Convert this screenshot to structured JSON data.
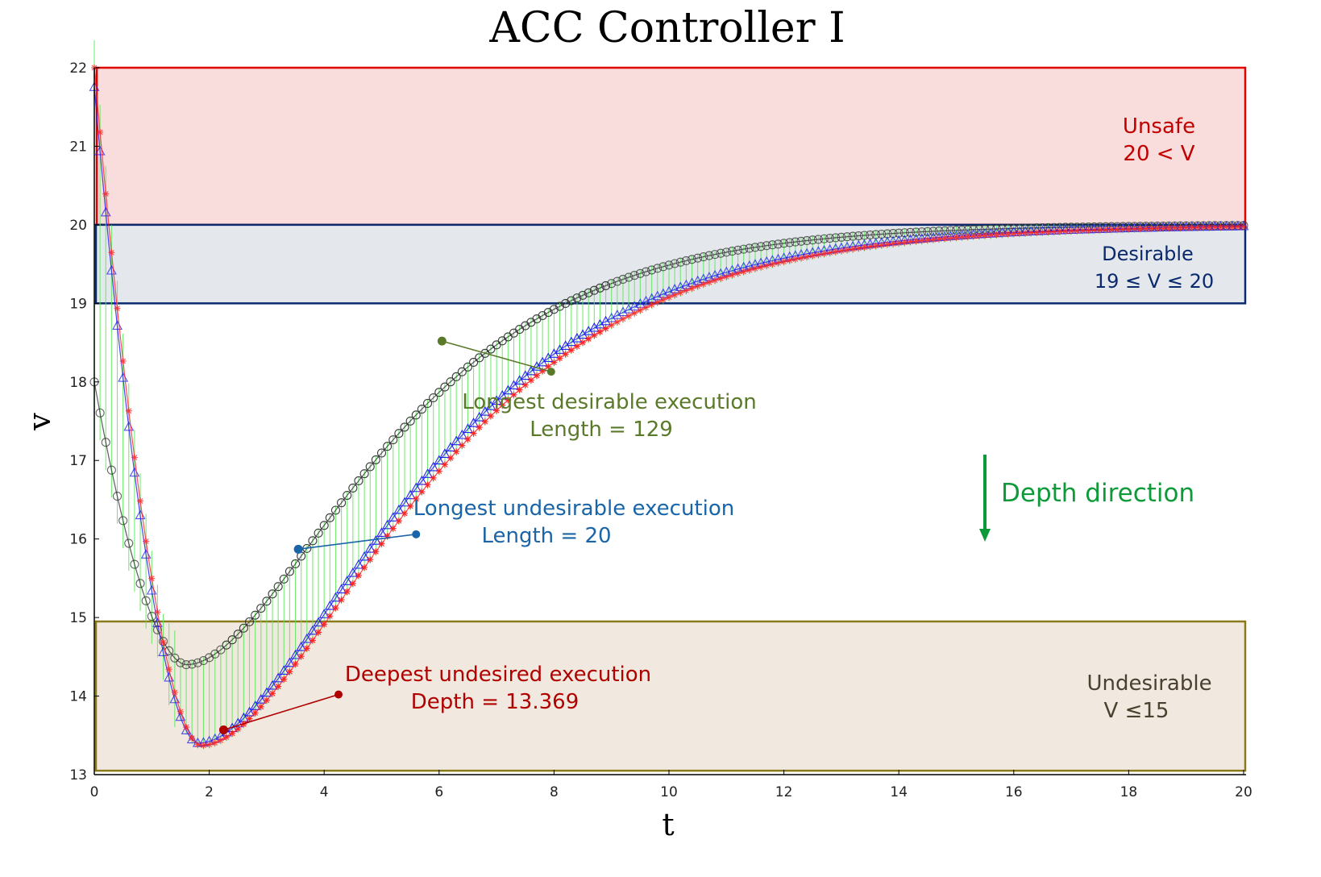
{
  "chart_data": {
    "type": "line",
    "title": "ACC Controller I",
    "xlabel": "t",
    "ylabel": "v",
    "xlim": [
      0,
      20
    ],
    "ylim": [
      13,
      22
    ],
    "xticks": [
      0,
      2,
      4,
      6,
      8,
      10,
      12,
      14,
      16,
      18,
      20
    ],
    "yticks": [
      13,
      14,
      15,
      16,
      17,
      18,
      19,
      20,
      21,
      22
    ],
    "grid": false,
    "regions": [
      {
        "name": "unsafe",
        "line1": "Unsafe",
        "line2": "20 <  V",
        "ymin": 20,
        "ymax": 22,
        "fill": "#f9dcdc",
        "stroke": "#e00000",
        "text_color": "#c00000"
      },
      {
        "name": "desirable",
        "line1": "Desirable",
        "line2": "19 ≤ V  ≤  20",
        "ymin": 19,
        "ymax": 20,
        "fill": "#e4e7ec",
        "stroke": "#0a2a6e",
        "text_color": "#0a2a6e"
      },
      {
        "name": "undesirable",
        "line1": "Undesirable",
        "line2": "V  ≤15",
        "ymin": 13.05,
        "ymax": 14.95,
        "fill": "#f1e9df",
        "stroke": "#8a7a1a",
        "text_color": "#4a4030"
      }
    ],
    "trace_model": {
      "t_min": 1.75,
      "v_min": 13.37,
      "v_final": 20,
      "tau": 2.3
    },
    "series": [
      {
        "marker": "circle",
        "color": "#333333",
        "start": 18.0,
        "t_min": 1.6,
        "v_min": 14.4,
        "tau": 2.1
      },
      {
        "marker": "triangle",
        "color": "#1a1aee",
        "start": 21.75,
        "t_min": 1.8,
        "v_min": 13.4,
        "tau": 2.3
      },
      {
        "marker": "star",
        "color": "#ff2020",
        "start": 22.0,
        "t_min": 1.85,
        "v_min": 13.37,
        "tau": 2.35
      }
    ],
    "annotations": [
      {
        "name": "longest-desirable",
        "line1": "Longest desirable execution",
        "line2": "Length = 129",
        "color": "#5a7a2a",
        "point": [
          6.05,
          18.52
        ],
        "anchor": [
          7.95,
          18.13
        ]
      },
      {
        "name": "longest-undesirable",
        "line1": "Longest undesirable execution",
        "line2": "Length = 20",
        "color": "#1a64a8",
        "point": [
          3.55,
          15.87
        ],
        "anchor": [
          5.6,
          16.06
        ]
      },
      {
        "name": "deepest-undesired",
        "line1": "Deepest undesired execution",
        "line2": "Depth = 13.369",
        "color": "#b00000",
        "point": [
          2.25,
          13.57
        ],
        "anchor": [
          4.25,
          14.02
        ]
      }
    ],
    "depth_label": {
      "text": "Depth direction",
      "color": "#0f9a3a"
    }
  }
}
